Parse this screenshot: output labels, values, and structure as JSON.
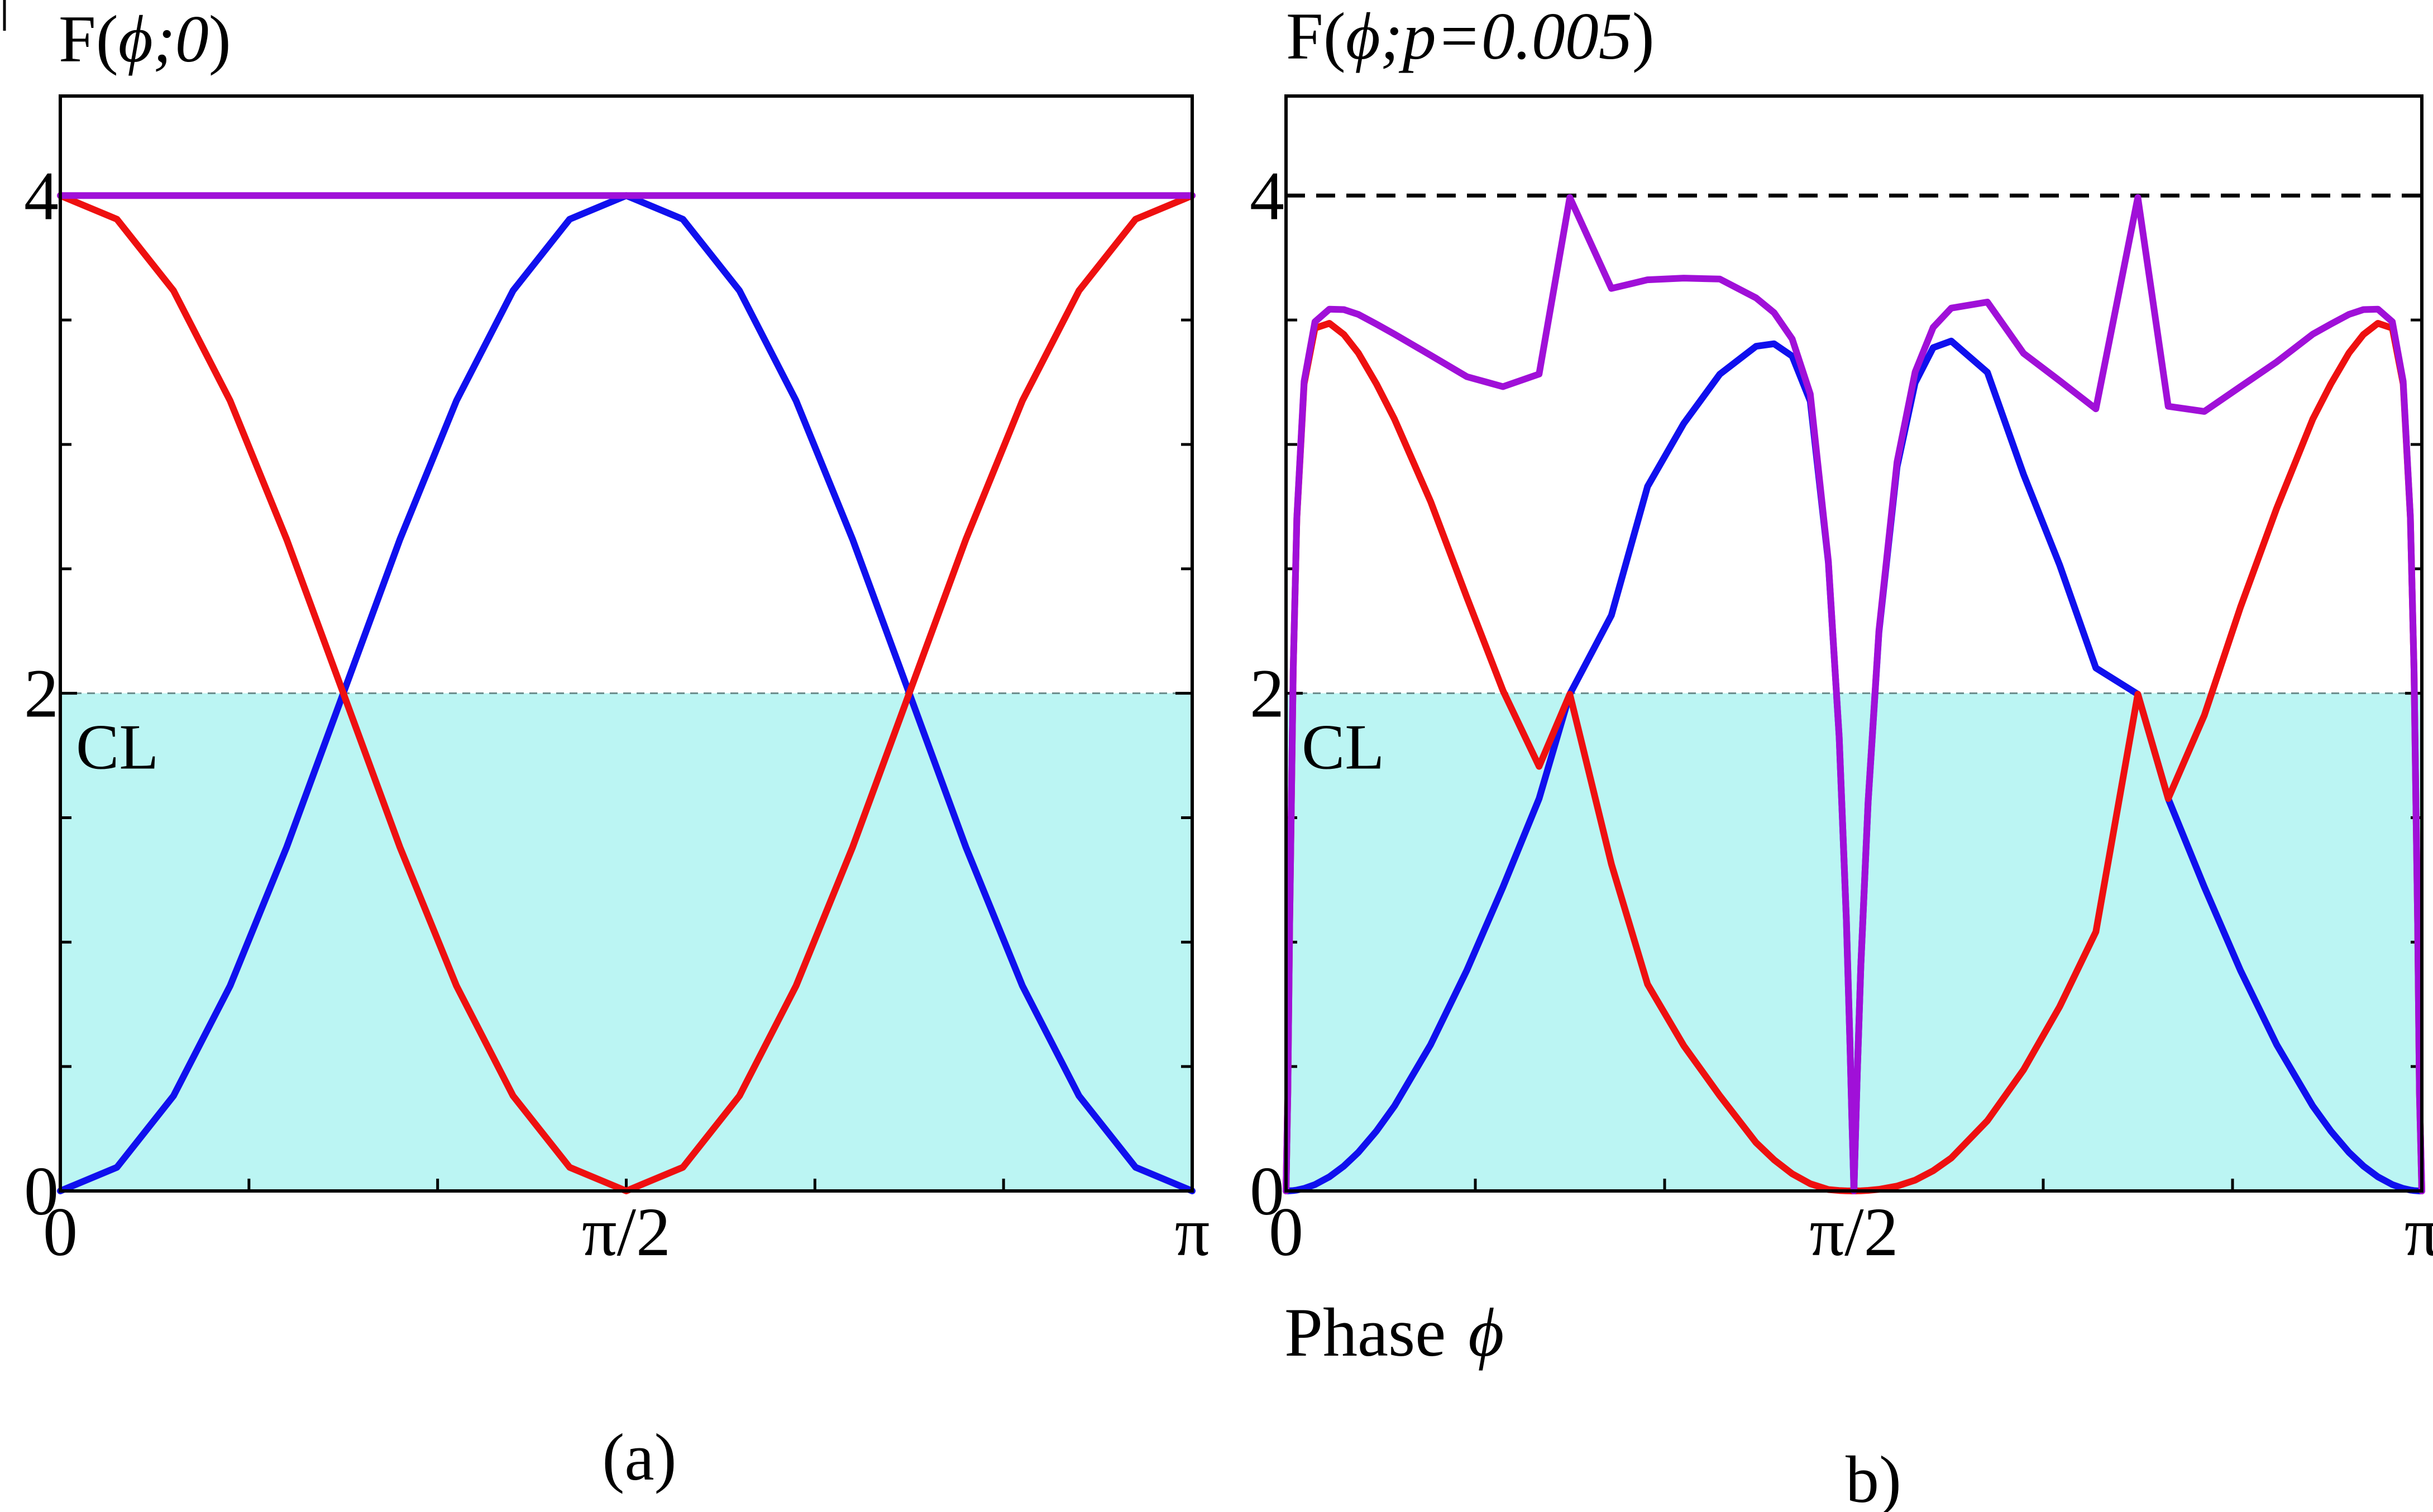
{
  "figure": {
    "xlabel_text": "Phase",
    "xlabel_symbol": "ϕ"
  },
  "chart_data": [
    {
      "type": "line",
      "panel_label": "(a)",
      "title": {
        "prefix": "F(",
        "symbol": "ϕ",
        "args": ";0",
        "suffix": ")"
      },
      "xlabel": "Phase ϕ",
      "ylabel": "",
      "xlim": [
        0,
        3.14159
      ],
      "ylim": [
        0,
        4.4
      ],
      "x_ticks": [
        {
          "value": 0,
          "label": "0"
        },
        {
          "value": 1.5708,
          "label": "π/2"
        },
        {
          "value": 3.14159,
          "label": "π"
        }
      ],
      "y_ticks": [
        {
          "value": 0,
          "label": "0"
        },
        {
          "value": 2,
          "label": "2"
        },
        {
          "value": 4,
          "label": "4"
        }
      ],
      "shaded_region": {
        "label": "CL",
        "y_from": 0,
        "y_to": 2,
        "color": "#bbf5f3"
      },
      "x": [
        0,
        0.1571,
        0.3142,
        0.4712,
        0.6283,
        0.7854,
        0.9425,
        1.0996,
        1.2566,
        1.4137,
        1.5708,
        1.7279,
        1.885,
        2.042,
        2.1991,
        2.3562,
        2.5133,
        2.6704,
        2.8274,
        2.9845,
        3.1416
      ],
      "series": [
        {
          "color": "#1010ee",
          "values": [
            0,
            0.095,
            0.382,
            0.824,
            1.382,
            2.0,
            2.618,
            3.176,
            3.618,
            3.905,
            4.0,
            3.905,
            3.618,
            3.176,
            2.618,
            2.0,
            1.382,
            0.824,
            0.382,
            0.095,
            0
          ]
        },
        {
          "color": "#ee1010",
          "values": [
            4.0,
            3.905,
            3.618,
            3.176,
            2.618,
            2.0,
            1.382,
            0.824,
            0.382,
            0.095,
            0,
            0.095,
            0.382,
            0.824,
            1.382,
            2.0,
            2.618,
            3.176,
            3.618,
            3.905,
            4.0
          ]
        },
        {
          "color": "#a010d8",
          "values": [
            4,
            4,
            4,
            4,
            4,
            4,
            4,
            4,
            4,
            4,
            4,
            4,
            4,
            4,
            4,
            4,
            4,
            4,
            4,
            4,
            4
          ]
        }
      ]
    },
    {
      "type": "line",
      "panel_label": "b)",
      "title": {
        "prefix": "F(",
        "symbol": "ϕ",
        "args": ";p=0.005",
        "suffix": ")"
      },
      "xlabel": "Phase ϕ",
      "ylabel": "",
      "xlim": [
        0,
        3.14159
      ],
      "ylim": [
        0,
        4.4
      ],
      "x_ticks": [
        {
          "value": 0,
          "label": "0"
        },
        {
          "value": 1.5708,
          "label": "π/2"
        },
        {
          "value": 3.14159,
          "label": "π"
        }
      ],
      "y_ticks": [
        {
          "value": 0,
          "label": "0"
        },
        {
          "value": 2,
          "label": "2"
        },
        {
          "value": 4,
          "label": "4"
        }
      ],
      "reference_line": {
        "y": 4,
        "style": "dashed",
        "color": "#000000"
      },
      "shaded_region": {
        "label": "CL",
        "y_from": 0,
        "y_to": 2,
        "color": "#bbf5f3"
      },
      "x": [
        0,
        0.005,
        0.01,
        0.02,
        0.03,
        0.05,
        0.08,
        0.12,
        0.16,
        0.2,
        0.25,
        0.3,
        0.4,
        0.5,
        0.6,
        0.7,
        0.785,
        0.9,
        1.0,
        1.1,
        1.2,
        1.3,
        1.35,
        1.4,
        1.45,
        1.5,
        1.53,
        1.55,
        1.56,
        1.565,
        1.5708,
        1.576,
        1.58,
        1.59,
        1.61,
        1.64,
        1.69,
        1.74,
        1.79,
        1.84,
        1.94,
        2.04,
        2.14,
        2.24,
        2.356,
        2.44,
        2.54,
        2.64,
        2.74,
        2.84,
        2.89,
        2.94,
        2.98,
        3.02,
        3.06,
        3.09,
        3.11,
        3.12,
        3.13,
        3.135,
        3.1416
      ],
      "series": [
        {
          "color": "#1010ee",
          "values": [
            0,
            0.0001,
            0.0004,
            0.0016,
            0.0036,
            0.01,
            0.0255,
            0.0567,
            0.1,
            0.155,
            0.2405,
            0.3412,
            0.5881,
            0.8863,
            1.2212,
            1.5766,
            1.9962,
            2.3134,
            2.8308,
            3.0841,
            3.2823,
            3.3944,
            3.4044,
            3.3549,
            3.1739,
            2.526,
            1.8228,
            1.0873,
            0.5835,
            0.3042,
            0,
            0.2682,
            0.4726,
            0.9066,
            1.5622,
            2.2456,
            2.9095,
            3.2475,
            3.3889,
            3.4155,
            3.2898,
            2.8791,
            2.5147,
            2.1016,
            1.9962,
            1.5766,
            1.2212,
            0.8863,
            0.5881,
            0.3412,
            0.2405,
            0.155,
            0.1,
            0.0567,
            0.0255,
            0.01,
            0.0036,
            0.0016,
            0.0004,
            0.0001,
            0
          ]
        },
        {
          "color": "#ee1010",
          "values": [
            0,
            0.3959,
            1.0723,
            2.0948,
            2.7034,
            3.2434,
            3.4673,
            3.4869,
            3.4417,
            3.3674,
            3.2432,
            3.1018,
            2.7701,
            2.3859,
            2.0109,
            1.7061,
            1.9962,
            1.3134,
            0.8308,
            0.5841,
            0.3823,
            0.1944,
            0.1251,
            0.069,
            0.0289,
            0.0055,
            0.0017,
            0.0005,
            0.0002,
            0.0001,
            0,
            0.0001,
            0.0002,
            0.0006,
            0.0023,
            0.0065,
            0.0196,
            0.0434,
            0.0813,
            0.1324,
            0.2823,
            0.4868,
            0.7409,
            1.0414,
            1.9962,
            1.5766,
            1.9114,
            2.3459,
            2.7431,
            3.1018,
            3.2432,
            3.3674,
            3.4417,
            3.4869,
            3.4673,
            3.2434,
            2.7034,
            2.0948,
            1.0723,
            0.3959,
            0
          ]
        },
        {
          "color": "#a010d8",
          "values": [
            0,
            0.3959,
            1.0723,
            2.0964,
            2.707,
            3.2534,
            3.4928,
            3.5436,
            3.5417,
            3.5224,
            3.4837,
            3.443,
            3.3582,
            3.2722,
            3.2321,
            3.2827,
            3.9924,
            3.6268,
            3.6616,
            3.6682,
            3.6646,
            3.5888,
            3.5295,
            3.4239,
            3.2028,
            2.5315,
            1.8245,
            1.0878,
            0.5837,
            0.3043,
            0,
            0.2683,
            0.4728,
            0.9072,
            1.5645,
            2.2521,
            2.9291,
            3.2909,
            3.4702,
            3.5479,
            3.5721,
            3.3659,
            3.2556,
            3.143,
            3.9924,
            3.1532,
            3.1326,
            3.2322,
            3.3312,
            3.443,
            3.4837,
            3.5224,
            3.5417,
            3.5436,
            3.4928,
            3.2534,
            2.707,
            2.0964,
            1.0723,
            0.3959,
            0
          ]
        }
      ]
    }
  ]
}
